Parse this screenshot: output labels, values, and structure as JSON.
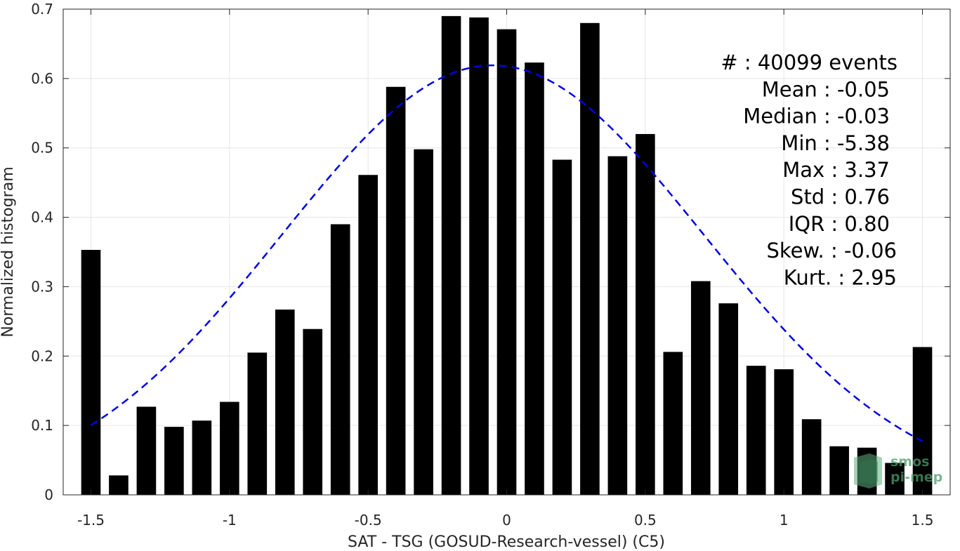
{
  "chart_data": {
    "type": "bar",
    "xlabel": "SAT - TSG (GOSUD-Research-vessel) (C5)",
    "ylabel": "Normalized histogram",
    "xlim": [
      -1.6,
      1.6
    ],
    "ylim": [
      0,
      0.7
    ],
    "xticks": [
      -1.5,
      -1,
      -0.5,
      0,
      0.5,
      1,
      1.5
    ],
    "xtick_labels": [
      "-1.5",
      "-1",
      "-0.5",
      "0",
      "0.5",
      "1",
      "1.5"
    ],
    "yticks": [
      0,
      0.1,
      0.2,
      0.3,
      0.4,
      0.5,
      0.6,
      0.7
    ],
    "ytick_labels": [
      "0",
      "0.1",
      "0.2",
      "0.3",
      "0.4",
      "0.5",
      "0.6",
      "0.7"
    ],
    "grid": true,
    "bar_color": "#000000",
    "bar_width": 0.07,
    "x": [
      -1.5,
      -1.4,
      -1.3,
      -1.2,
      -1.1,
      -1.0,
      -0.9,
      -0.8,
      -0.7,
      -0.6,
      -0.5,
      -0.4,
      -0.3,
      -0.2,
      -0.1,
      0.0,
      0.1,
      0.2,
      0.3,
      0.4,
      0.5,
      0.6,
      0.7,
      0.8,
      0.9,
      1.0,
      1.1,
      1.2,
      1.3,
      1.4,
      1.5
    ],
    "values": [
      0.353,
      0.028,
      0.127,
      0.098,
      0.107,
      0.134,
      0.205,
      0.267,
      0.239,
      0.39,
      0.461,
      0.588,
      0.498,
      0.69,
      0.688,
      0.671,
      0.623,
      0.483,
      0.68,
      0.488,
      0.52,
      0.206,
      0.308,
      0.276,
      0.186,
      0.181,
      0.109,
      0.07,
      0.068,
      0.046,
      0.213
    ],
    "fit": {
      "type": "normal-curve",
      "style": "dashed",
      "color": "#0000e6",
      "x_range": [
        -1.5,
        1.5
      ],
      "mean": -0.05,
      "std": 0.76,
      "peak": 0.619
    },
    "stats": [
      "#  : 40099 events",
      "Mean : -0.05",
      "Median : -0.03",
      "Min : -5.38",
      "Max : 3.37",
      "Std : 0.76",
      "IQR : 0.80",
      "Skew. : -0.06",
      "Kurt. : 2.95"
    ],
    "watermark": [
      "smos",
      "pi-mep"
    ]
  }
}
